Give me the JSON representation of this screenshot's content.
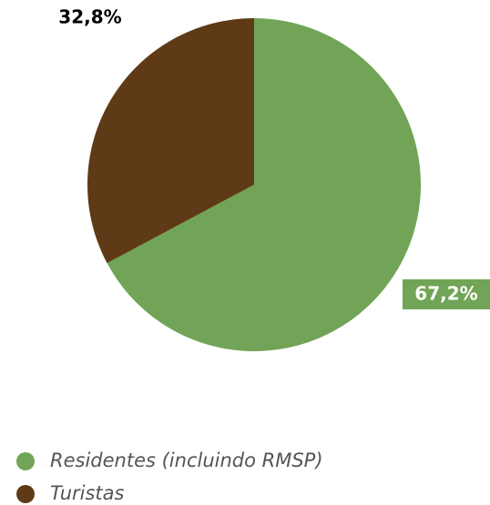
{
  "chart_data": {
    "type": "pie",
    "categories": [
      "Residentes (incluindo RMSP)",
      "Turistas"
    ],
    "values": [
      67.2,
      32.8
    ],
    "value_labels": [
      "67,2%",
      "32,8%"
    ],
    "colors": [
      "#71a456",
      "#5e3a16"
    ],
    "legend": "bottom-left"
  }
}
